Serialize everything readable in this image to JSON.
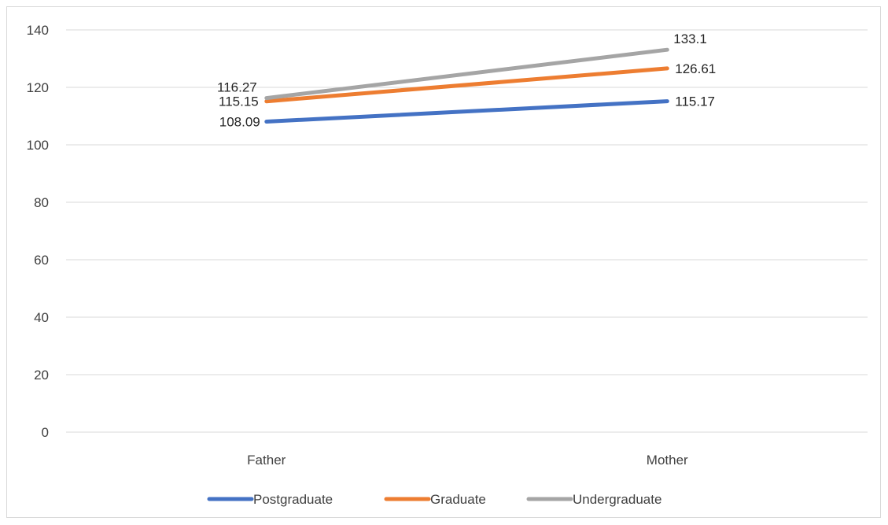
{
  "chart_data": {
    "type": "line",
    "categories": [
      "Father",
      "Mother"
    ],
    "series": [
      {
        "name": "Postgraduate",
        "values": [
          108.09,
          115.17
        ],
        "color": "#4472C4"
      },
      {
        "name": "Graduate",
        "values": [
          115.15,
          126.61
        ],
        "color": "#ED7D31"
      },
      {
        "name": "Undergraduate",
        "values": [
          116.27,
          133.1
        ],
        "color": "#A5A5A5"
      }
    ],
    "data_labels": [
      [
        "108.09",
        "115.17"
      ],
      [
        "115.15",
        "126.61"
      ],
      [
        "116.27",
        "133.1"
      ]
    ],
    "title": "",
    "xlabel": "",
    "ylabel": "",
    "ylim": [
      0,
      140
    ],
    "yticks": [
      0,
      20,
      40,
      60,
      80,
      100,
      120,
      140
    ],
    "grid": true,
    "gridline_color": "#d9d9d9",
    "legend_position": "bottom"
  }
}
